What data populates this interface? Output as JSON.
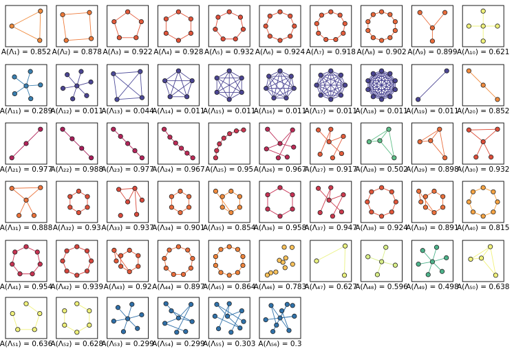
{
  "figure": {
    "panels": [
      {
        "label": "A(Λ₁) = 0.852",
        "color": "#f08a3c",
        "n": 3,
        "layout": "tri",
        "edges": "ring"
      },
      {
        "label": "A(Λ₂) = 0.878",
        "color": "#ee7a3a",
        "n": 4,
        "layout": "quad",
        "edges": "ring"
      },
      {
        "label": "A(Λ₃) = 0.922",
        "color": "#e35a3a",
        "n": 5,
        "layout": "ring",
        "edges": "ring"
      },
      {
        "label": "A(Λ₄) = 0.928",
        "color": "#e0543a",
        "n": 6,
        "layout": "ring",
        "edges": "ring"
      },
      {
        "label": "A(Λ₅) = 0.932",
        "color": "#de4e3a",
        "n": 7,
        "layout": "ring",
        "edges": "ring"
      },
      {
        "label": "A(Λ₆) = 0.924",
        "color": "#e1563a",
        "n": 8,
        "layout": "ring",
        "edges": "ring"
      },
      {
        "label": "A(Λ₇) = 0.918",
        "color": "#e35c3b",
        "n": 9,
        "layout": "ring",
        "edges": "ring"
      },
      {
        "label": "A(Λ₈) = 0.902",
        "color": "#e8683b",
        "n": 10,
        "layout": "ring",
        "edges": "ring"
      },
      {
        "label": "A(Λ₉) = 0.899",
        "color": "#e96c3b",
        "n": 4,
        "layout": "star3",
        "edges": "star"
      },
      {
        "label": "A(Λ₁₀) = 0.621",
        "color": "#eef07a",
        "n": 5,
        "layout": "cross",
        "edges": "star"
      },
      {
        "label": "A(Λ₁₁) = 0.289",
        "color": "#3a7fb0",
        "n": 6,
        "layout": "star5",
        "edges": "star"
      },
      {
        "label": "A(Λ₁₂) = 0.011",
        "color": "#4b4593",
        "n": 7,
        "layout": "star6",
        "edges": "star"
      },
      {
        "label": "A(Λ₁₃) = 0.044",
        "color": "#4e4c9a",
        "n": 4,
        "layout": "quad",
        "edges": "complete"
      },
      {
        "label": "A(Λ₁₄) = 0.011",
        "color": "#4b4593",
        "n": 5,
        "layout": "ring",
        "edges": "complete"
      },
      {
        "label": "A(Λ₁₅) = 0.011",
        "color": "#4b4593",
        "n": 6,
        "layout": "ring",
        "edges": "complete"
      },
      {
        "label": "A(Λ₁₆) = 0.011",
        "color": "#4b4593",
        "n": 7,
        "layout": "ring",
        "edges": "complete"
      },
      {
        "label": "A(Λ₁₇) = 0.011",
        "color": "#4b4593",
        "n": 8,
        "layout": "ring",
        "edges": "complete"
      },
      {
        "label": "A(Λ₁₈) = 0.011",
        "color": "#4b4593",
        "n": 10,
        "layout": "ring",
        "edges": "complete"
      },
      {
        "label": "A(Λ₁₉) = 0.011",
        "color": "#4b4593",
        "n": 2,
        "layout": "diag-up",
        "edges": "path"
      },
      {
        "label": "A(Λ₂₀) = 0.852",
        "color": "#f08a3c",
        "n": 3,
        "layout": "diag-down",
        "edges": "path"
      },
      {
        "label": "A(Λ₂₁) = 0.977",
        "color": "#b3245a",
        "n": 3,
        "layout": "diag-up",
        "edges": "path"
      },
      {
        "label": "A(Λ₂₂) = 0.988",
        "color": "#a81e5a",
        "n": 4,
        "layout": "diag-down",
        "edges": "path"
      },
      {
        "label": "A(Λ₂₃) = 0.977",
        "color": "#b3245a",
        "n": 5,
        "layout": "diag-down",
        "edges": "path"
      },
      {
        "label": "A(Λ₂₄) = 0.967",
        "color": "#bd2b57",
        "n": 6,
        "layout": "arc-down",
        "edges": "path"
      },
      {
        "label": "A(Λ₂₅) = 0.95",
        "color": "#c93651",
        "n": 7,
        "layout": "arc-up",
        "edges": "path"
      },
      {
        "label": "A(Λ₂₆) = 0.967",
        "color": "#bd2b57",
        "n": 7,
        "layout": "branch-a",
        "edges": "tree"
      },
      {
        "label": "A(Λ₂₇) = 0.917",
        "color": "#e35c3b",
        "n": 7,
        "layout": "branch-b",
        "edges": "tree"
      },
      {
        "label": "A(Λ₂₈) = 0.502",
        "color": "#5fbf88",
        "n": 4,
        "layout": "kite",
        "edges": "kite"
      },
      {
        "label": "A(Λ₂₉) = 0.898",
        "color": "#e96c3b",
        "n": 4,
        "layout": "kite",
        "edges": "kite"
      },
      {
        "label": "A(Λ₃₀) = 0.932",
        "color": "#de4e3a",
        "n": 5,
        "layout": "tri-tail",
        "edges": "tritail"
      },
      {
        "label": "A(Λ₃₁) = 0.888",
        "color": "#ec733b",
        "n": 5,
        "layout": "tri-tail",
        "edges": "tritail"
      },
      {
        "label": "A(Λ₃₂) = 0.93",
        "color": "#de503a",
        "n": 6,
        "layout": "quad-tail",
        "edges": "ringtail"
      },
      {
        "label": "A(Λ₃₃) = 0.937",
        "color": "#d84a3c",
        "n": 6,
        "layout": "branch-c",
        "edges": "tritail"
      },
      {
        "label": "A(Λ₃₄) = 0.901",
        "color": "#e8693b",
        "n": 6,
        "layout": "quad-tail",
        "edges": "ringtail"
      },
      {
        "label": "A(Λ₃₅) = 0.854",
        "color": "#f08a3c",
        "n": 7,
        "layout": "quad-tail",
        "edges": "ringtail"
      },
      {
        "label": "A(Λ₃₆) = 0.958",
        "color": "#c53053",
        "n": 6,
        "layout": "ring",
        "edges": "ring"
      },
      {
        "label": "A(Λ₃₇) = 0.947",
        "color": "#cc3a4e",
        "n": 7,
        "layout": "branch-b",
        "edges": "tree"
      },
      {
        "label": "A(Λ₃₈) = 0.924",
        "color": "#e1563a",
        "n": 8,
        "layout": "ring",
        "edges": "ring"
      },
      {
        "label": "A(Λ₃₉) = 0.891",
        "color": "#eb703b",
        "n": 8,
        "layout": "quad-tail",
        "edges": "ringtail"
      },
      {
        "label": "A(Λ₄₀) = 0.815",
        "color": "#f6a443",
        "n": 8,
        "layout": "ring",
        "edges": "ring"
      },
      {
        "label": "A(Λ₄₁) = 0.954",
        "color": "#c73352",
        "n": 7,
        "layout": "ring",
        "edges": "ring"
      },
      {
        "label": "A(Λ₄₂) = 0.939",
        "color": "#d6463e",
        "n": 8,
        "layout": "ring",
        "edges": "ring"
      },
      {
        "label": "A(Λ₄₃) = 0.92",
        "color": "#e25a3a",
        "n": 8,
        "layout": "quad-tail",
        "edges": "ringtail"
      },
      {
        "label": "A(Λ₄₄) = 0.897",
        "color": "#ea6d3b",
        "n": 9,
        "layout": "ring",
        "edges": "ring"
      },
      {
        "label": "A(Λ₄₅) = 0.864",
        "color": "#ef833b",
        "n": 10,
        "layout": "ring",
        "edges": "ring"
      },
      {
        "label": "A(Λ₄₆) = 0.783",
        "color": "#f9c25b",
        "n": 10,
        "layout": "scatter",
        "edges": "none"
      },
      {
        "label": "A(Λ₄₇) = 0.627",
        "color": "#eaf280",
        "n": 3,
        "layout": "tri",
        "edges": "path"
      },
      {
        "label": "A(Λ₄₈) = 0.596",
        "color": "#d9ef88",
        "n": 5,
        "layout": "star5",
        "edges": "star"
      },
      {
        "label": "A(Λ₄₉) = 0.498",
        "color": "#4db38b",
        "n": 7,
        "layout": "star6",
        "edges": "star"
      },
      {
        "label": "A(Λ₅₀) = 0.638",
        "color": "#f1f27c",
        "n": 4,
        "layout": "kite",
        "edges": "kite"
      },
      {
        "label": "A(Λ₅₁) = 0.636",
        "color": "#f1f27c",
        "n": 5,
        "layout": "ring",
        "edges": "path"
      },
      {
        "label": "A(Λ₅₂) = 0.628",
        "color": "#eef07a",
        "n": 6,
        "layout": "ring",
        "edges": "path"
      },
      {
        "label": "A(Λ₅₃) = 0.299",
        "color": "#2f6fa8",
        "n": 7,
        "layout": "star6",
        "edges": "star"
      },
      {
        "label": "A(Λ₅₄) = 0.299",
        "color": "#2f6fa8",
        "n": 8,
        "layout": "branch-a",
        "edges": "tree"
      },
      {
        "label": "A(Λ₅₅) = 0.303",
        "color": "#3072aa",
        "n": 9,
        "layout": "branch-b",
        "edges": "tree"
      },
      {
        "label": "A(Λ₅₆) = 0.3",
        "color": "#3072aa",
        "n": 10,
        "layout": "branch-c",
        "edges": "tree"
      }
    ]
  }
}
